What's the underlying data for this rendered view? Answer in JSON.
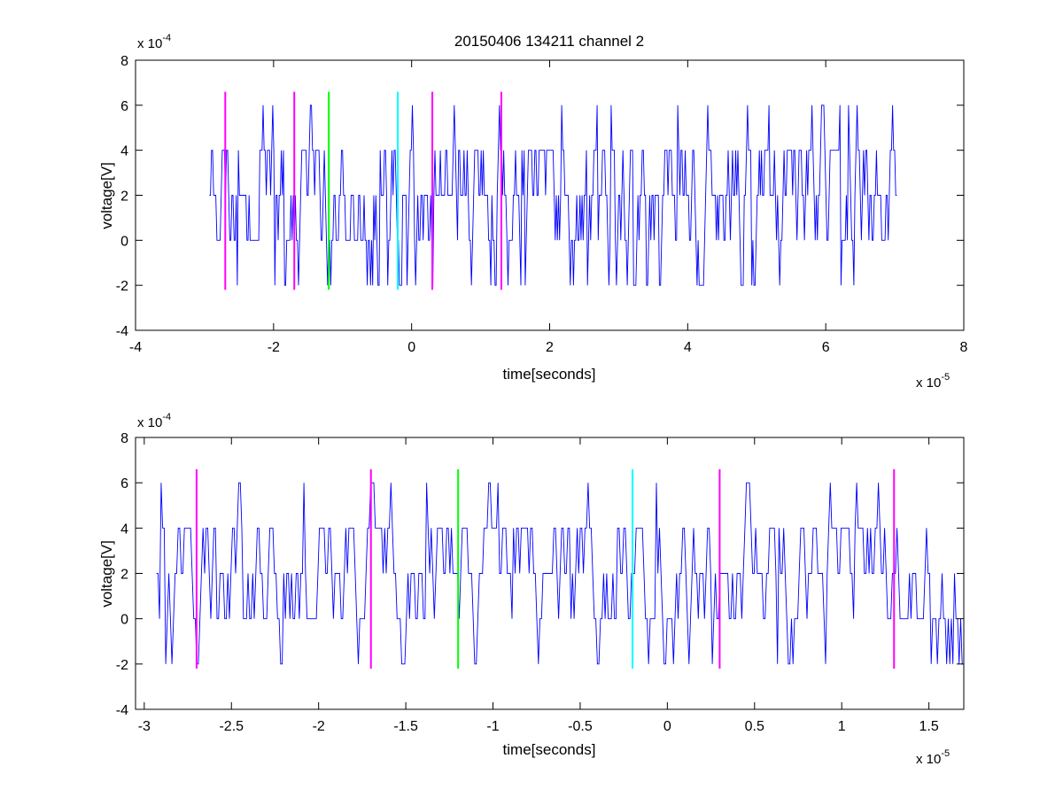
{
  "figure": {
    "title": "20150406 134211 channel 2",
    "background": "#ffffff"
  },
  "colors": {
    "signal": "#0000ff",
    "magenta_marker": "#ff00ff",
    "green_marker": "#00ff00",
    "cyan_marker": "#00ffff",
    "axes": "#000000"
  },
  "chart_data": [
    {
      "type": "line",
      "title": "20150406 134211 channel 2",
      "xlabel": "time[seconds]",
      "ylabel": "voltage[V]",
      "x_exponent_label": "x 10",
      "x_exponent": "-5",
      "y_exponent_label": "x 10",
      "y_exponent": "-4",
      "xlim": [
        -4,
        8
      ],
      "ylim": [
        -4,
        8
      ],
      "xticks": [
        -4,
        -2,
        0,
        2,
        4,
        6,
        8
      ],
      "xtick_labels": [
        "-4",
        "-2",
        "0",
        "2",
        "4",
        "6",
        "8"
      ],
      "yticks": [
        -4,
        -2,
        0,
        2,
        4,
        6,
        8
      ],
      "ytick_labels": [
        "-4",
        "-2",
        "0",
        "2",
        "4",
        "6",
        "8"
      ],
      "grid": false,
      "series": [
        {
          "color": "#0000ff",
          "x_start": -2.93,
          "x_end": 7.03,
          "levels": [
            -2,
            0,
            2,
            4,
            6
          ],
          "baseline": 2,
          "min": -2,
          "max": 6,
          "seed": 11
        }
      ],
      "markers": [
        {
          "x": -2.7,
          "color": "#ff00ff",
          "ymin": -2.2,
          "ymax": 6.6
        },
        {
          "x": -1.7,
          "color": "#ff00ff",
          "ymin": -2.2,
          "ymax": 6.6
        },
        {
          "x": -1.2,
          "color": "#00ff00",
          "ymin": -2.2,
          "ymax": 6.6
        },
        {
          "x": -0.2,
          "color": "#00ffff",
          "ymin": -2.2,
          "ymax": 6.6
        },
        {
          "x": 0.3,
          "color": "#ff00ff",
          "ymin": -2.2,
          "ymax": 6.6
        },
        {
          "x": 1.3,
          "color": "#ff00ff",
          "ymin": -2.2,
          "ymax": 6.6
        }
      ]
    },
    {
      "type": "line",
      "title": "",
      "xlabel": "time[seconds]",
      "ylabel": "voltage[V]",
      "x_exponent_label": "x 10",
      "x_exponent": "-5",
      "y_exponent_label": "x 10",
      "y_exponent": "-4",
      "xlim": [
        -3.05,
        1.7
      ],
      "ylim": [
        -4,
        8
      ],
      "xticks": [
        -3,
        -2.5,
        -2,
        -1.5,
        -1,
        -0.5,
        0,
        0.5,
        1,
        1.5
      ],
      "xtick_labels": [
        "-3",
        "-2.5",
        "-2",
        "-1.5",
        "-1",
        "-0.5",
        "0",
        "0.5",
        "1",
        "1.5"
      ],
      "yticks": [
        -4,
        -2,
        0,
        2,
        4,
        6,
        8
      ],
      "ytick_labels": [
        "-4",
        "-2",
        "0",
        "2",
        "4",
        "6",
        "8"
      ],
      "grid": false,
      "series": [
        {
          "color": "#0000ff",
          "x_start": -2.93,
          "x_end": 1.7,
          "levels": [
            -2,
            0,
            2,
            4,
            6
          ],
          "baseline": 2,
          "min": -2,
          "max": 6,
          "seed": 7
        }
      ],
      "markers": [
        {
          "x": -2.7,
          "color": "#ff00ff",
          "ymin": -2.2,
          "ymax": 6.6
        },
        {
          "x": -1.7,
          "color": "#ff00ff",
          "ymin": -2.2,
          "ymax": 6.6
        },
        {
          "x": -1.2,
          "color": "#00ff00",
          "ymin": -2.2,
          "ymax": 6.6
        },
        {
          "x": -0.2,
          "color": "#00ffff",
          "ymin": -2.2,
          "ymax": 6.6
        },
        {
          "x": 0.3,
          "color": "#ff00ff",
          "ymin": -2.2,
          "ymax": 6.6
        },
        {
          "x": 1.3,
          "color": "#ff00ff",
          "ymin": -2.2,
          "ymax": 6.6
        }
      ]
    }
  ]
}
